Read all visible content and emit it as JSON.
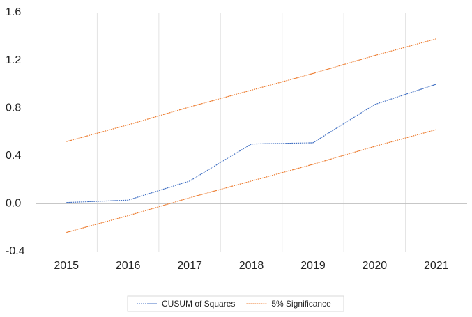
{
  "chart_data": {
    "type": "line",
    "categories": [
      "2015",
      "2016",
      "2017",
      "2018",
      "2019",
      "2020",
      "2021"
    ],
    "series": [
      {
        "name": "CUSUM of Squares",
        "color": "#4472c4",
        "values": [
          0.01,
          0.03,
          0.19,
          0.5,
          0.51,
          0.83,
          1.0
        ]
      },
      {
        "name": "5% Significance",
        "color": "#ed7d31",
        "values": [
          0.52,
          0.66,
          0.81,
          0.95,
          1.09,
          1.24,
          1.38
        ],
        "lower": [
          -0.24,
          -0.1,
          0.05,
          0.19,
          0.33,
          0.48,
          0.62
        ]
      }
    ],
    "ylim": [
      -0.4,
      1.6
    ],
    "yticks": [
      -0.4,
      {
        "value": 0,
        "label": "0.0"
      },
      0.4,
      0.8,
      1.2,
      1.6
    ],
    "grid": "x",
    "legend": "bottom"
  }
}
